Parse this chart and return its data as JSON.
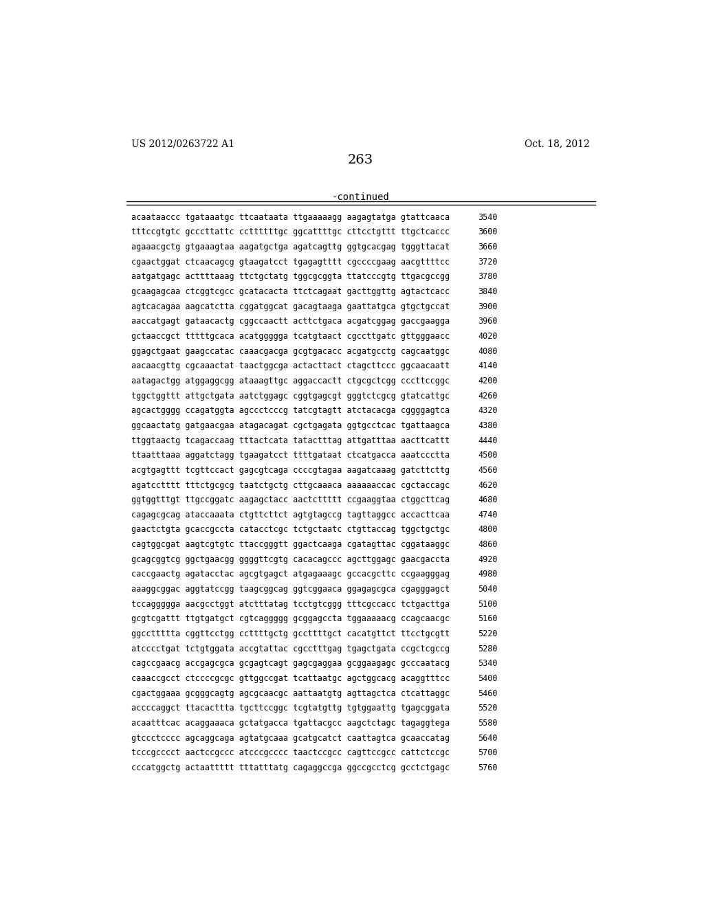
{
  "header_left": "US 2012/0263722 A1",
  "header_right": "Oct. 18, 2012",
  "page_number": "263",
  "continued_label": "-continued",
  "background_color": "#ffffff",
  "text_color": "#000000",
  "font_size_header": 10,
  "font_size_page": 14,
  "font_size_continued": 10,
  "font_size_sequence": 8.5,
  "sequence_lines": [
    [
      "acaataaccc tgataaatgc ttcaataata ttgaaaaagg aagagtatga gtattcaaca",
      "3540"
    ],
    [
      "tttccgtgtc gcccttattc ccttttttgc ggcattttgc cttcctgttt ttgctcaccc",
      "3600"
    ],
    [
      "agaaacgctg gtgaaagtaa aagatgctga agatcagttg ggtgcacgag tgggttacat",
      "3660"
    ],
    [
      "cgaactggat ctcaacagcg gtaagatcct tgagagtttt cgccccgaag aacgttttcc",
      "3720"
    ],
    [
      "aatgatgagc acttttaaag ttctgctatg tggcgcggta ttatcccgtg ttgacgccgg",
      "3780"
    ],
    [
      "gcaagagcaa ctcggtcgcc gcatacacta ttctcagaat gacttggttg agtactcacc",
      "3840"
    ],
    [
      "agtcacagaa aagcatctta cggatggcat gacagtaaga gaattatgca gtgctgccat",
      "3900"
    ],
    [
      "aaccatgagt gataacactg cggccaactt acttctgaca acgatcggag gaccgaagga",
      "3960"
    ],
    [
      "gctaaccgct tttttgcaca acatggggga tcatgtaact cgccttgatc gttgggaacc",
      "4020"
    ],
    [
      "ggagctgaat gaagccatac caaacgacga gcgtgacacc acgatgcctg cagcaatggc",
      "4080"
    ],
    [
      "aacaacgttg cgcaaactat taactggcga actacttact ctagcttccc ggcaacaatt",
      "4140"
    ],
    [
      "aatagactgg atggaggcgg ataaagttgc aggaccactt ctgcgctcgg cccttccggc",
      "4200"
    ],
    [
      "tggctggttt attgctgata aatctggagc cggtgagcgt gggtctcgcg gtatcattgc",
      "4260"
    ],
    [
      "agcactgggg ccagatggta agccctcccg tatcgtagtt atctacacga cggggagtca",
      "4320"
    ],
    [
      "ggcaactatg gatgaacgaa atagacagat cgctgagata ggtgcctcac tgattaagca",
      "4380"
    ],
    [
      "ttggtaactg tcagaccaag tttactcata tatactttag attgatttaa aacttcattt",
      "4440"
    ],
    [
      "ttaatttaaa aggatctagg tgaagatcct ttttgataat ctcatgacca aaatccctta",
      "4500"
    ],
    [
      "acgtgagttt tcgttccact gagcgtcaga ccccgtagaa aagatcaaag gatcttcttg",
      "4560"
    ],
    [
      "agatcctttt tttctgcgcg taatctgctg cttgcaaaca aaaaaaccac cgctaccagc",
      "4620"
    ],
    [
      "ggtggtttgt ttgccggatc aagagctacc aactcttttt ccgaaggtaa ctggcttcag",
      "4680"
    ],
    [
      "cagagcgcag ataccaaata ctgttcttct agtgtagccg tagttaggcc accacttcaa",
      "4740"
    ],
    [
      "gaactctgta gcaccgccta catacctcgc tctgctaatc ctgttaccag tggctgctgc",
      "4800"
    ],
    [
      "cagtggcgat aagtcgtgtc ttaccgggtt ggactcaaga cgatagttac cggataaggc",
      "4860"
    ],
    [
      "gcagcggtcg ggctgaacgg ggggttcgtg cacacagccc agcttggagc gaacgaccta",
      "4920"
    ],
    [
      "caccgaactg agatacctac agcgtgagct atgagaaagc gccacgcttc ccgaagggag",
      "4980"
    ],
    [
      "aaaggcggac aggtatccgg taagcggcag ggtcggaaca ggagagcgca cgagggagct",
      "5040"
    ],
    [
      "tccaggggga aacgcctggt atctttatag tcctgtcggg tttcgccacc tctgacttga",
      "5100"
    ],
    [
      "gcgtcgattt ttgtgatgct cgtcaggggg gcggagccta tggaaaaacg ccagcaacgc",
      "5160"
    ],
    [
      "ggccttttta cggttcctgg ccttttgctg gccttttgct cacatgttct ttcctgcgtt",
      "5220"
    ],
    [
      "atcccctgat tctgtggata accgtattac cgcctttgag tgagctgata ccgctcgccg",
      "5280"
    ],
    [
      "cagccgaacg accgagcgca gcgagtcagt gagcgaggaa gcggaagagc gcccaatacg",
      "5340"
    ],
    [
      "caaaccgcct ctccccgcgc gttggccgat tcattaatgc agctggcacg acaggtttcc",
      "5400"
    ],
    [
      "cgactggaaa gcgggcagtg agcgcaacgc aattaatgtg agttagctca ctcattaggc",
      "5460"
    ],
    [
      "accccaggct ttacacttta tgcttccggc tcgtatgttg tgtggaattg tgagcggata",
      "5520"
    ],
    [
      "acaatttcac acaggaaaca gctatgacca tgattacgcc aagctctagc tagaggtega",
      "5580"
    ],
    [
      "gtccctcccc agcaggcaga agtatgcaaa gcatgcatct caattagtca gcaaccatag",
      "5640"
    ],
    [
      "tcccgcccct aactccgccc atcccgcccc taactccgcc cagttccgcc cattctccgc",
      "5700"
    ],
    [
      "cccatggctg actaattttt tttatttatg cagaggccga ggccgcctcg gcctctgagc",
      "5760"
    ]
  ]
}
